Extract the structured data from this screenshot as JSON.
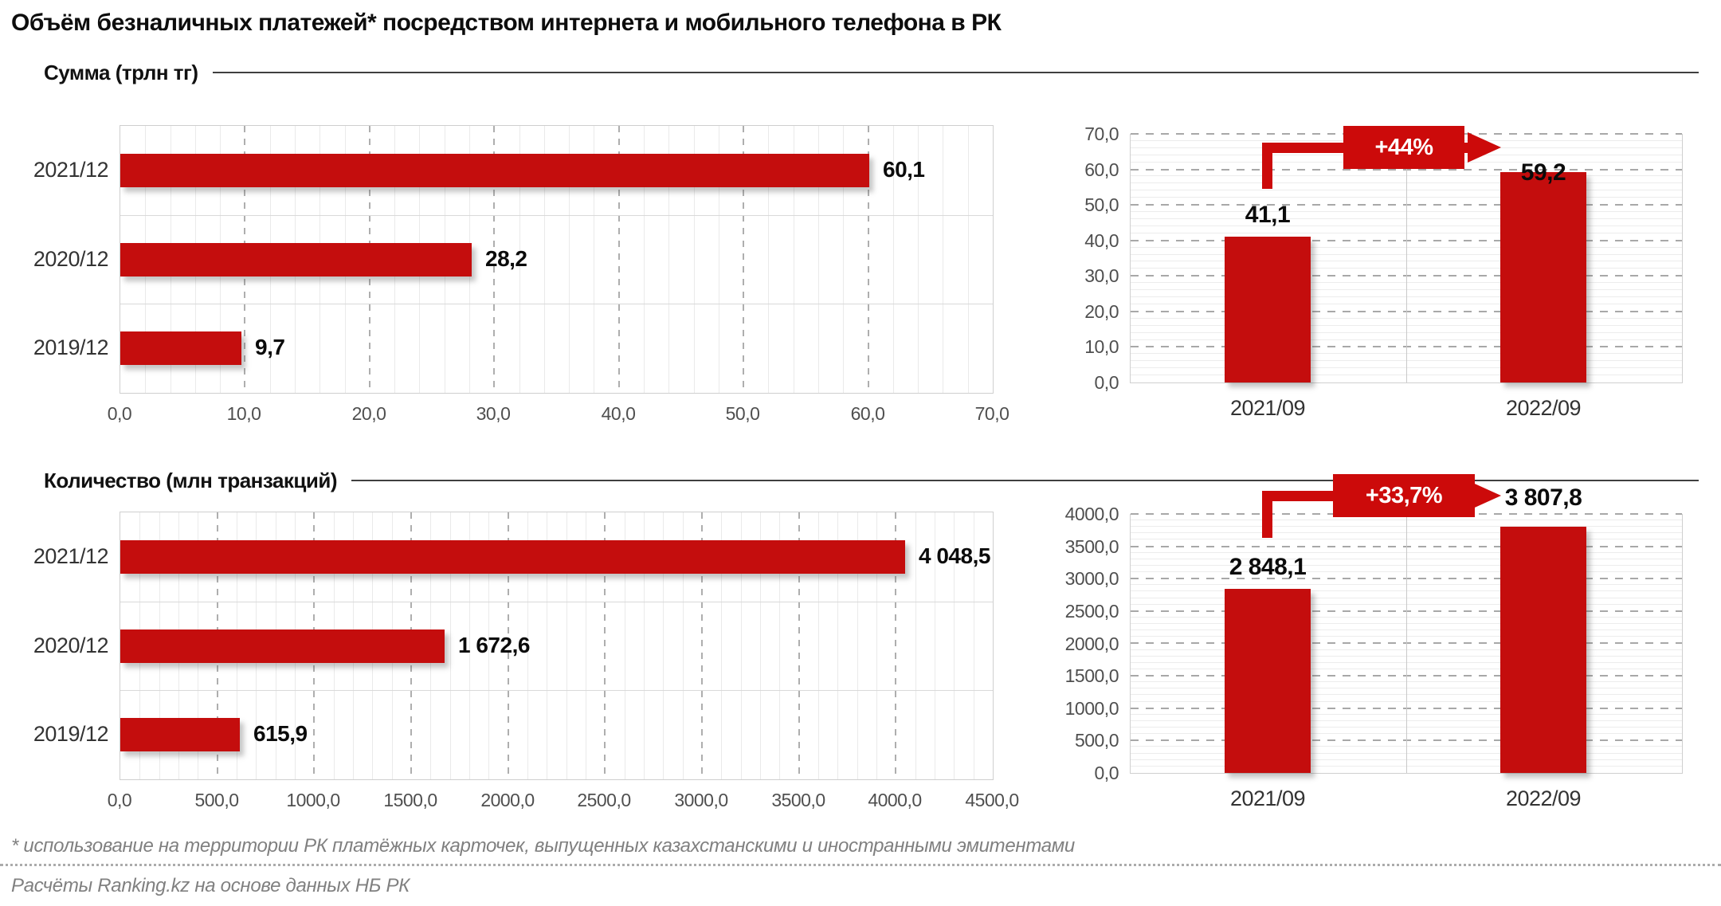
{
  "title": "Объём безналичных платежей* посредством интернета и мобильного телефона в РК",
  "sections": [
    {
      "label": "Сумма (трлн тг)"
    },
    {
      "label": "Количество (млн транзакций)"
    }
  ],
  "footnote": "* использование на территории РК платёжных карточек, выпущенных казахстанскими и иностранными эмитентами",
  "source": "Расчёты Ranking.kz на основе данных НБ РК",
  "colors": {
    "bar": "#c40d0d",
    "annotation": "#cc0a0a",
    "grid_minor": "#eaeaea",
    "grid_major": "#a8a8a8",
    "band_separator": "#d9d9d9",
    "plot_border": "#cfcfcf",
    "tick_text": "#4f4f4f",
    "category_text": "#333333",
    "value_text": "#0b0b0b",
    "footnote_text": "#808080"
  },
  "chart_data": [
    {
      "id": "sum-by-year",
      "type": "bar",
      "orientation": "horizontal",
      "section": "Сумма (трлн тг)",
      "title": "",
      "categories": [
        "2021/12",
        "2020/12",
        "2019/12"
      ],
      "values": [
        60.1,
        28.2,
        9.7
      ],
      "value_labels": [
        "60,1",
        "28,2",
        "9,7"
      ],
      "xlim": [
        0,
        70
      ],
      "x_major_step": 10,
      "x_minor_step": 2,
      "x_tick_labels": [
        "0,0",
        "10,0",
        "20,0",
        "30,0",
        "40,0",
        "50,0",
        "60,0",
        "70,0"
      ],
      "grid": "on",
      "legend": "none"
    },
    {
      "id": "sum-yoy",
      "type": "bar",
      "orientation": "vertical",
      "section": "Сумма (трлн тг)",
      "title": "",
      "categories": [
        "2021/09",
        "2022/09"
      ],
      "values": [
        41.1,
        59.2
      ],
      "value_labels": [
        "41,1",
        "59,2"
      ],
      "ylim": [
        0,
        70
      ],
      "y_major_step": 10,
      "y_minor_step": 2,
      "y_tick_labels": [
        "0,0",
        "10,0",
        "20,0",
        "30,0",
        "40,0",
        "50,0",
        "60,0",
        "70,0"
      ],
      "annotation": {
        "label": "+44%"
      },
      "grid": "on",
      "legend": "none"
    },
    {
      "id": "count-by-year",
      "type": "bar",
      "orientation": "horizontal",
      "section": "Количество (млн транзакций)",
      "title": "",
      "categories": [
        "2021/12",
        "2020/12",
        "2019/12"
      ],
      "values": [
        4048.5,
        1672.6,
        615.9
      ],
      "value_labels": [
        "4 048,5",
        "1 672,6",
        "615,9"
      ],
      "xlim": [
        0,
        4500
      ],
      "x_major_step": 500,
      "x_minor_step": 100,
      "x_tick_labels": [
        "0,0",
        "500,0",
        "1000,0",
        "1500,0",
        "2000,0",
        "2500,0",
        "3000,0",
        "3500,0",
        "4000,0",
        "4500,0"
      ],
      "grid": "on",
      "legend": "none"
    },
    {
      "id": "count-yoy",
      "type": "bar",
      "orientation": "vertical",
      "section": "Количество (млн транзакций)",
      "title": "",
      "categories": [
        "2021/09",
        "2022/09"
      ],
      "values": [
        2848.1,
        3807.8
      ],
      "value_labels": [
        "2 848,1",
        "3 807,8"
      ],
      "ylim": [
        0,
        4000
      ],
      "y_major_step": 500,
      "y_minor_step": 100,
      "y_tick_labels": [
        "0,0",
        "500,0",
        "1000,0",
        "1500,0",
        "2000,0",
        "2500,0",
        "3000,0",
        "3500,0",
        "4000,0"
      ],
      "annotation": {
        "label": "+33,7%"
      },
      "grid": "on",
      "legend": "none"
    }
  ]
}
